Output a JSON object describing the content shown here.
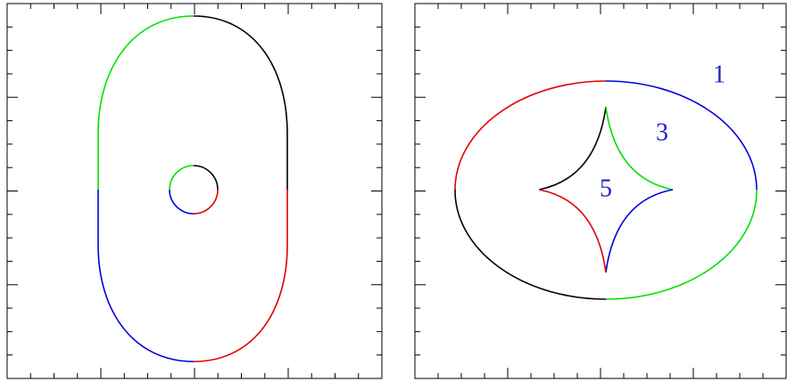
{
  "labels": [
    "1",
    "3",
    "5"
  ]
}
